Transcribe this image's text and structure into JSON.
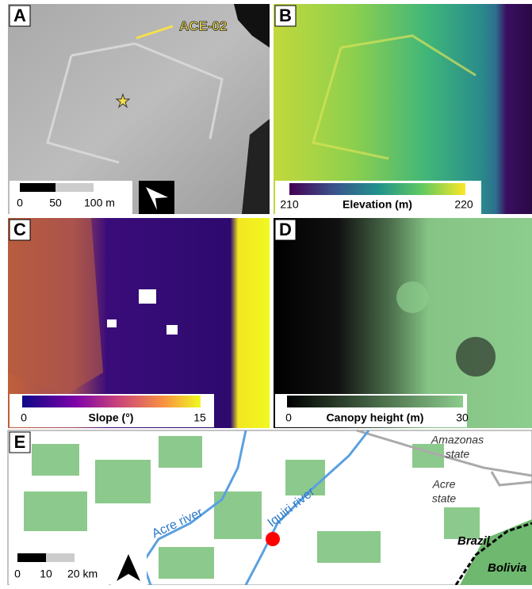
{
  "panels": [
    {
      "label": "A",
      "annotation": "ACE-02",
      "scale_bar": [
        "0",
        "50",
        "100 m"
      ]
    },
    {
      "label": "B",
      "colorbar": {
        "title": "Elevation (m)",
        "min": 210,
        "max": 220
      }
    },
    {
      "label": "C",
      "colorbar": {
        "title": "Slope (°)",
        "min": 0,
        "max": 15
      }
    },
    {
      "label": "D",
      "colorbar": {
        "title": "Canopy height (m)",
        "min": 0,
        "max": 30
      }
    },
    {
      "label": "E",
      "places": [
        "Amazonas",
        "state",
        "Acre",
        "state",
        "Brazil",
        "Bolivia"
      ],
      "rivers": [
        "Acre river",
        "Iquiri river"
      ],
      "scale_bar": [
        "0",
        "10",
        "20 km"
      ]
    }
  ]
}
